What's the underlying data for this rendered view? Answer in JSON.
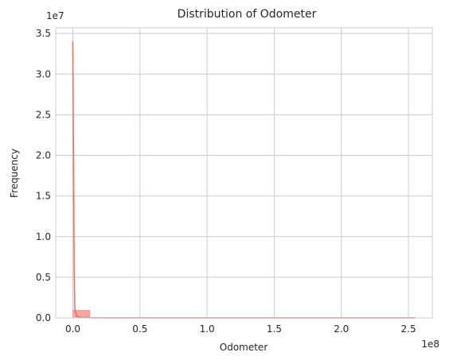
{
  "chart_data": {
    "type": "bar",
    "title": "Distribution of Odometer",
    "xlabel": "Odometer",
    "ylabel": "Frequency",
    "x_offset_label": "1e8",
    "y_offset_label": "1e7",
    "xlim": [
      -12750000,
      267750000
    ],
    "ylim": [
      0,
      35700000
    ],
    "x_ticks": [
      0,
      50000000,
      100000000,
      150000000,
      200000000,
      250000000
    ],
    "x_tick_labels": [
      "0.0",
      "0.5",
      "1.0",
      "1.5",
      "2.0",
      "2.5"
    ],
    "y_ticks": [
      0,
      5000000,
      10000000,
      15000000,
      20000000,
      25000000,
      30000000,
      35000000
    ],
    "y_tick_labels": [
      "0.0",
      "0.5",
      "1.0",
      "1.5",
      "2.0",
      "2.5",
      "3.0",
      "3.5"
    ],
    "grid": true,
    "bins": [
      {
        "x0": 0,
        "x1": 12750000,
        "count": 950000
      },
      {
        "x0": 12750000,
        "x1": 25500000,
        "count": 30000
      },
      {
        "x0": 25500000,
        "x1": 38250000,
        "count": 20000
      },
      {
        "x0": 38250000,
        "x1": 51000000,
        "count": 15000
      },
      {
        "x0": 51000000,
        "x1": 63750000,
        "count": 12000
      },
      {
        "x0": 63750000,
        "x1": 76500000,
        "count": 10000
      },
      {
        "x0": 76500000,
        "x1": 89250000,
        "count": 8000
      },
      {
        "x0": 89250000,
        "x1": 102000000,
        "count": 7000
      },
      {
        "x0": 102000000,
        "x1": 114750000,
        "count": 6000
      },
      {
        "x0": 114750000,
        "x1": 127500000,
        "count": 5000
      },
      {
        "x0": 127500000,
        "x1": 140250000,
        "count": 5000
      },
      {
        "x0": 140250000,
        "x1": 153000000,
        "count": 4000
      },
      {
        "x0": 153000000,
        "x1": 165750000,
        "count": 4000
      },
      {
        "x0": 165750000,
        "x1": 178500000,
        "count": 3000
      },
      {
        "x0": 178500000,
        "x1": 191250000,
        "count": 3000
      },
      {
        "x0": 191250000,
        "x1": 204000000,
        "count": 3000
      },
      {
        "x0": 204000000,
        "x1": 216750000,
        "count": 2000
      },
      {
        "x0": 216750000,
        "x1": 229500000,
        "count": 2000
      },
      {
        "x0": 229500000,
        "x1": 242250000,
        "count": 2000
      },
      {
        "x0": 242250000,
        "x1": 255000000,
        "count": 2000
      }
    ],
    "kde": {
      "x": [
        0,
        500000,
        1000000,
        1500000,
        3000000,
        6000000,
        12000000,
        25000000,
        50000000,
        100000000,
        150000000,
        200000000,
        255000000
      ],
      "y": [
        34000000,
        20000000,
        6000000,
        1000000,
        200000,
        50000,
        10000,
        0,
        0,
        0,
        0,
        0,
        0
      ]
    },
    "colors": {
      "bar_fill": "#f4a5a0",
      "bar_stroke": "#f19590",
      "kde_line": "#ee6b5f",
      "grid": "#cccccc",
      "axis": "#262626"
    }
  }
}
